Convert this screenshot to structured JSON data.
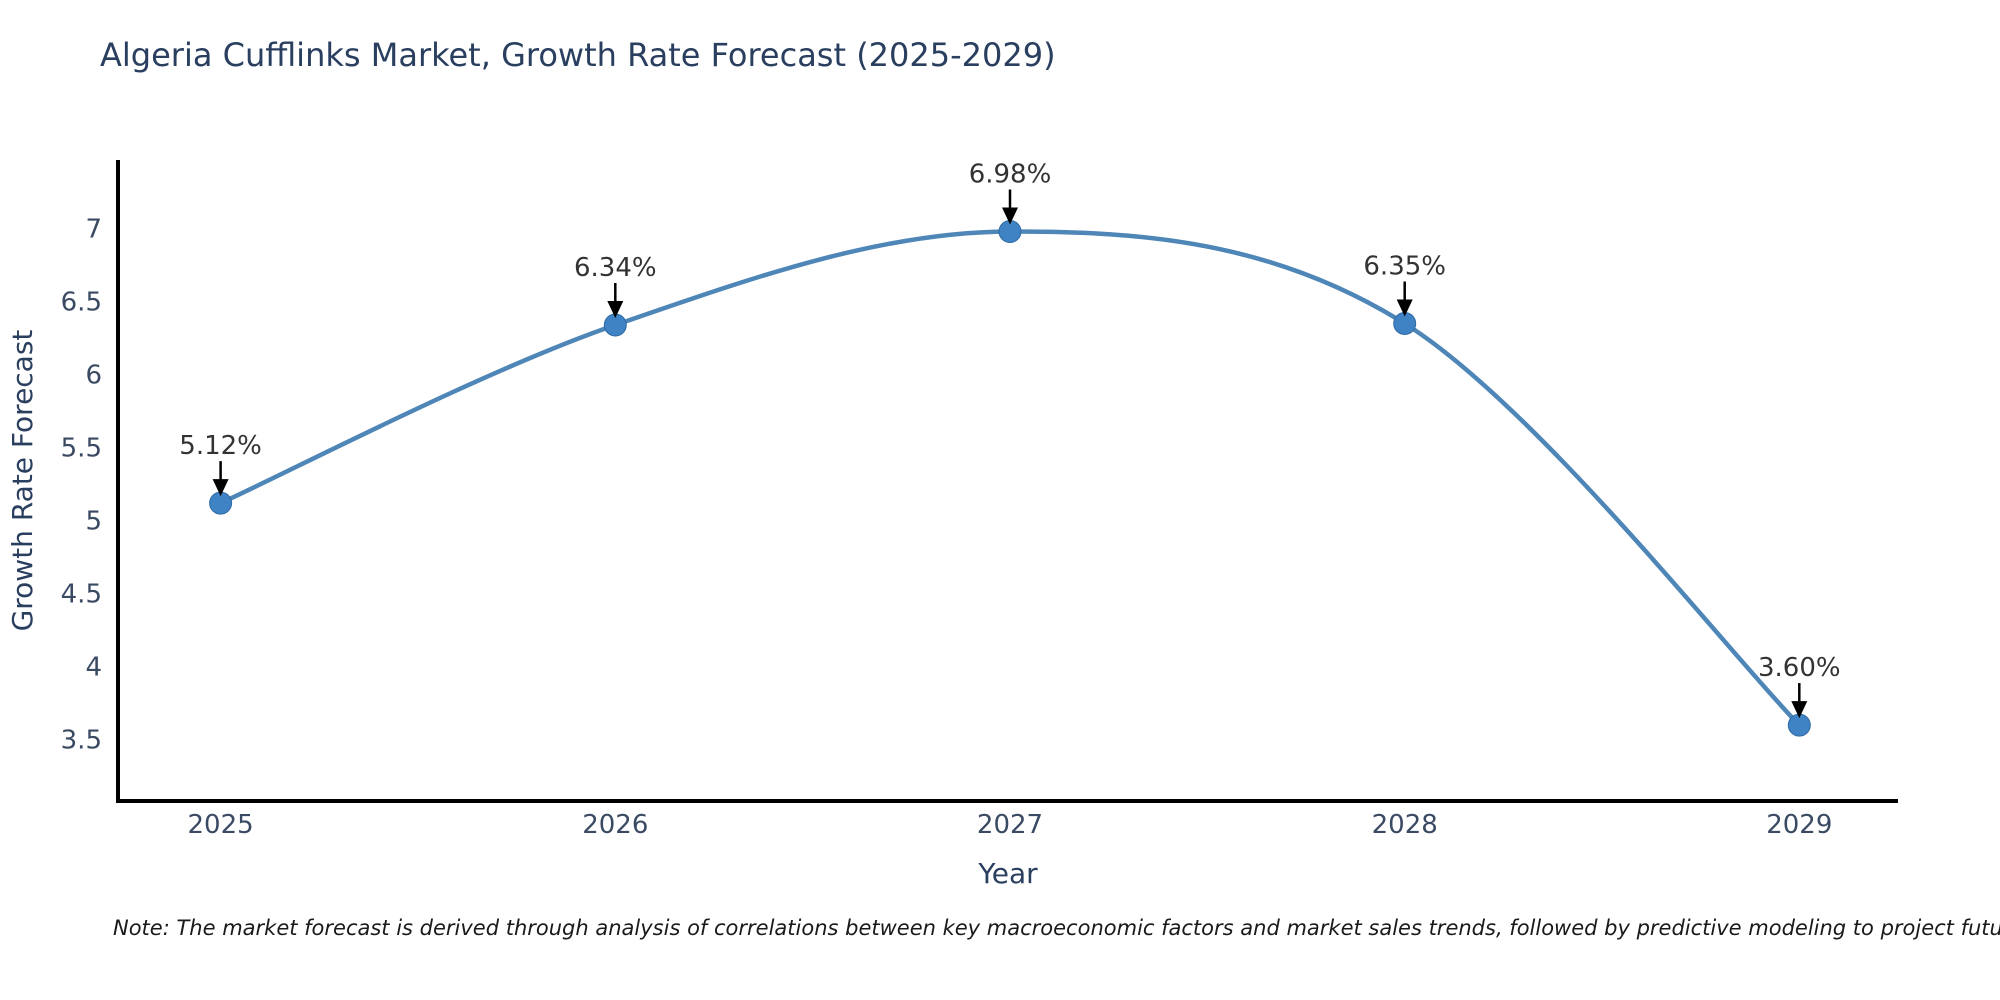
{
  "title": "Algeria Cufflinks Market, Growth Rate Forecast (2025-2029)",
  "note": "Note: The market forecast is derived through analysis of correlations between key macroeconomic factors and market sales trends, followed by predictive modeling to project future sales",
  "chart_data": {
    "type": "line",
    "title": "Algeria Cufflinks Market, Growth Rate Forecast (2025-2029)",
    "xlabel": "Year",
    "ylabel": "Growth Rate Forecast",
    "x": [
      2025,
      2026,
      2027,
      2028,
      2029
    ],
    "values": [
      5.12,
      6.34,
      6.98,
      6.35,
      3.6
    ],
    "data_labels": [
      "5.12%",
      "6.34%",
      "6.98%",
      "6.35%",
      "3.60%"
    ],
    "xticks": [
      "2025",
      "2026",
      "2027",
      "2028",
      "2029"
    ],
    "yticks": [
      "3.5",
      "4",
      "4.5",
      "5",
      "5.5",
      "6",
      "6.5",
      "7"
    ],
    "ytick_values": [
      3.5,
      4,
      4.5,
      5,
      5.5,
      6,
      6.5,
      7
    ],
    "xlim": [
      2024.74,
      2029.25
    ],
    "ylim": [
      3.08,
      7.47
    ],
    "grid": false,
    "legend": "none",
    "smooth_curve": true,
    "colors": {
      "line": "#4e86b8",
      "marker": "#3f83c4",
      "marker_edge": "#2f6ba3",
      "annotation_text": "#333333",
      "annotation_arrow": "#000000",
      "axis_line": "#000000",
      "tick_text": "#3b4a63",
      "axis_title_text": "#2a3f5f",
      "title_text": "#2a3f5f"
    }
  }
}
